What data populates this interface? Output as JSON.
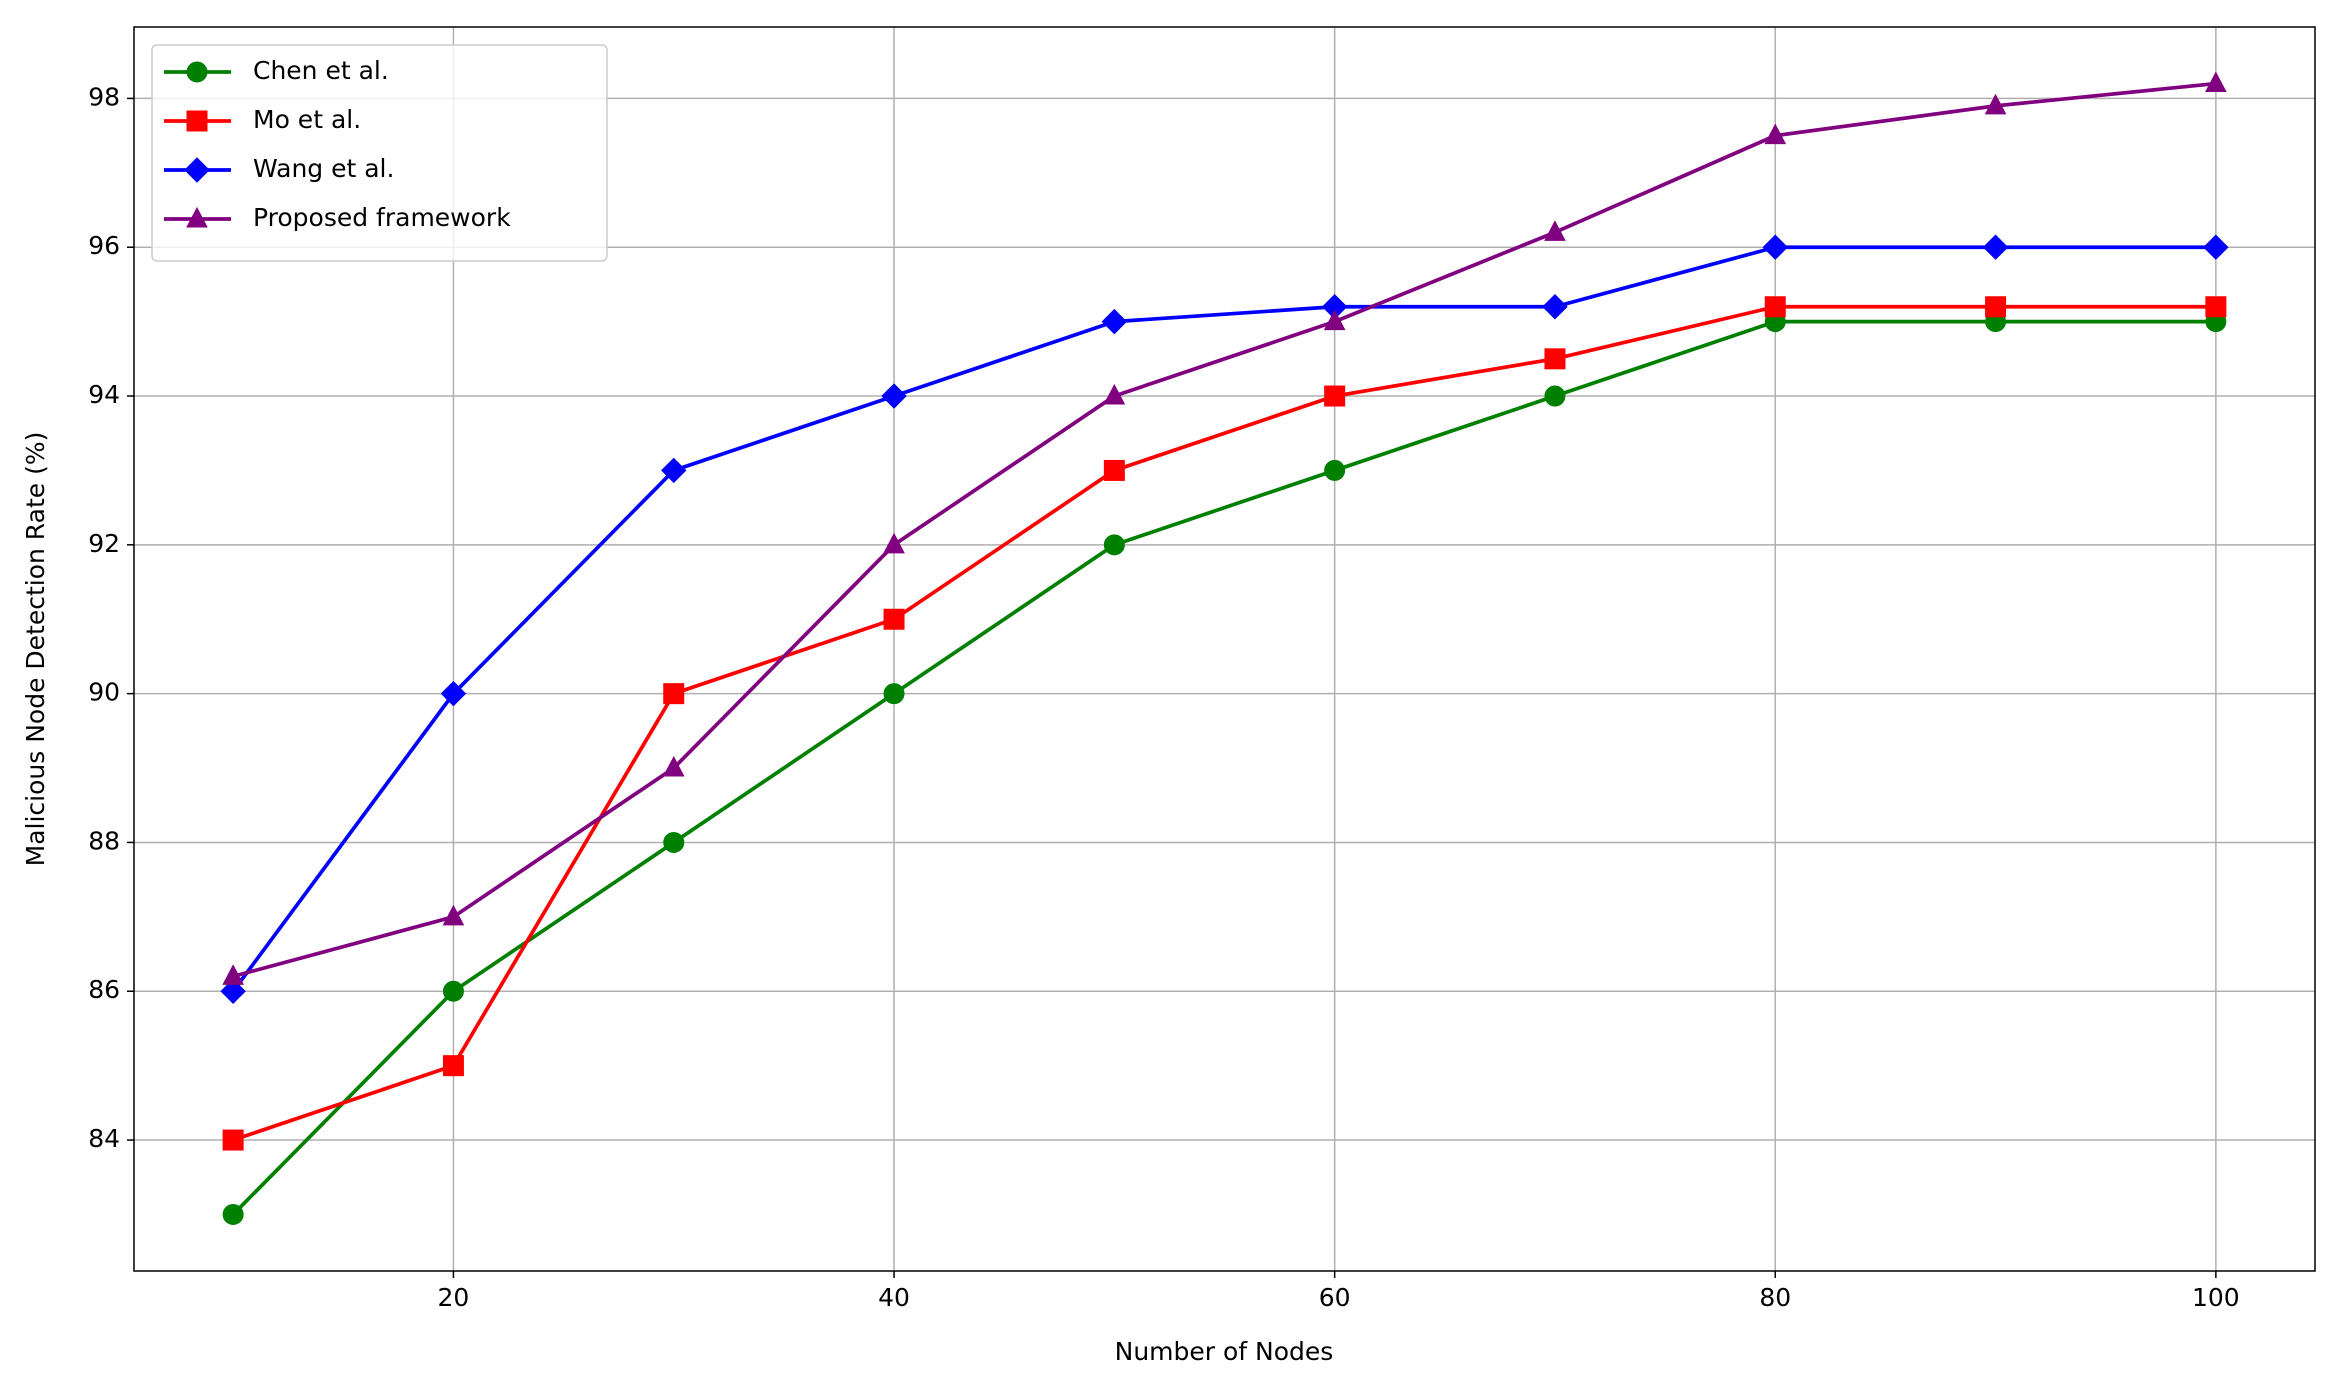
{
  "chart_data": {
    "type": "line",
    "xlabel": "Number of Nodes",
    "ylabel": "Malicious Node Detection Rate (%)",
    "x": [
      10,
      20,
      30,
      40,
      50,
      60,
      70,
      80,
      90,
      100
    ],
    "series": [
      {
        "name": "Chen et al.",
        "color": "green",
        "marker": "circle",
        "values": [
          83,
          86,
          88,
          90,
          92,
          93,
          94,
          95,
          95,
          95
        ]
      },
      {
        "name": "Mo et al.",
        "color": "red",
        "marker": "square",
        "values": [
          84,
          85,
          90,
          91,
          93,
          94,
          94.5,
          95.2,
          95.2,
          95.2
        ]
      },
      {
        "name": "Wang et al.",
        "color": "blue",
        "marker": "diamond",
        "values": [
          86,
          90,
          93,
          94,
          95,
          95.2,
          95.2,
          96,
          96,
          96
        ]
      },
      {
        "name": "Proposed framework",
        "color": "purple",
        "marker": "triangle",
        "values": [
          86.2,
          87,
          89,
          92,
          94,
          95,
          96.2,
          97.5,
          97.9,
          98.2
        ]
      }
    ],
    "xlim": [
      5.5,
      104.5
    ],
    "xticks": [
      20,
      40,
      60,
      80,
      100
    ],
    "ylim": [
      82.24,
      98.96
    ],
    "yticks": [
      84,
      86,
      88,
      90,
      92,
      94,
      96,
      98
    ],
    "grid": true,
    "legend": "upper left"
  }
}
